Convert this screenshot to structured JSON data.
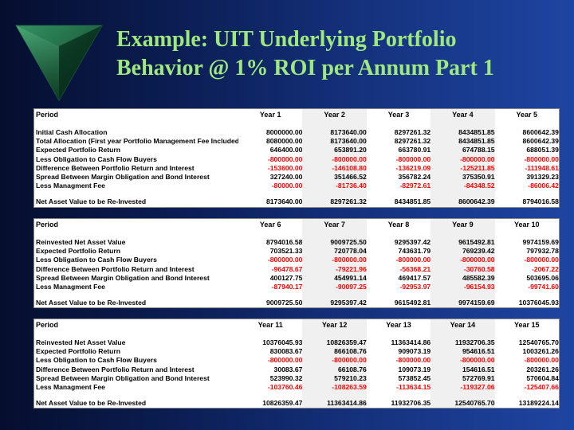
{
  "slide": {
    "title_line1": "Example: UIT Underlying Portfolio",
    "title_line2": "Behavior @ 1% ROI per Annum Part 1"
  },
  "tables": [
    {
      "header_label": "Period",
      "years": [
        "Year 1",
        "Year 2",
        "Year 3",
        "Year 4",
        "Year 5"
      ],
      "rows": [
        {
          "label": "Initial Cash Allocation",
          "values": [
            "8000000.00",
            "8173640.00",
            "8297261.32",
            "8434851.85",
            "8600642.39"
          ],
          "neg": false
        },
        {
          "label": "Total Allocation (First year Portfolio Management Fee Included)",
          "values": [
            "8080000.00",
            "8173640.00",
            "8297261.32",
            "8434851.85",
            "8600642.39"
          ],
          "neg": false
        },
        {
          "label": "Expected Portfolio Return",
          "values": [
            "646400.00",
            "653891.20",
            "663780.91",
            "674788.15",
            "688051.39"
          ],
          "neg": false
        },
        {
          "label": "Less Obligation to Cash Flow Buyers",
          "values": [
            "-800000.00",
            "-800000.00",
            "-800000.00",
            "-800000.00",
            "-800000.00"
          ],
          "neg": true
        },
        {
          "label": "Difference Between Portfolio Return and Interest",
          "values": [
            "-153600.00",
            "-146108.80",
            "-136219.09",
            "-125211.85",
            "-111948.61"
          ],
          "neg": true
        },
        {
          "label": "Spread Between Margin Obligation and Bond Interest",
          "values": [
            "327240.00",
            "351466.52",
            "356782.24",
            "375350.91",
            "391329.23"
          ],
          "neg": false
        },
        {
          "label": "Less Managment Fee",
          "values": [
            "-80000.00",
            "-81736.40",
            "-82972.61",
            "-84348.52",
            "-86006.42"
          ],
          "neg": true
        }
      ],
      "total_label": "Net Asset Value to be Re-Invested",
      "totals": [
        "8173640.00",
        "8297261.32",
        "8434851.85",
        "8600642.39",
        "8794016.58"
      ]
    },
    {
      "header_label": "Period",
      "years": [
        "Year 6",
        "Year 7",
        "Year 8",
        "Year 9",
        "Year 10"
      ],
      "rows": [
        {
          "label": "Reinvested Net Asset Value",
          "values": [
            "8794016.58",
            "9009725.50",
            "9295397.42",
            "9615492.81",
            "9974159.69"
          ],
          "neg": false
        },
        {
          "label": "Expected Portfolio Return",
          "values": [
            "703521.33",
            "720778.04",
            "743631.79",
            "769239.42",
            "797932.78"
          ],
          "neg": false
        },
        {
          "label": "Less Obligation to Cash Flow Buyers",
          "values": [
            "-800000.00",
            "-800000.00",
            "-800000.00",
            "-800000.00",
            "-800000.00"
          ],
          "neg": true
        },
        {
          "label": "Difference Between Portfolio Return and Interest",
          "values": [
            "-96478.67",
            "-79221.96",
            "-56368.21",
            "-30760.58",
            "-2067.22"
          ],
          "neg": true
        },
        {
          "label": "Spread Between Margin Obligation and Bond Interest",
          "values": [
            "400127.75",
            "454991.14",
            "469417.57",
            "485582.39",
            "503695.06"
          ],
          "neg": false
        },
        {
          "label": "Less Managment Fee",
          "values": [
            "-87940.17",
            "-90097.25",
            "-92953.97",
            "-96154.93",
            "-99741.60"
          ],
          "neg": true
        }
      ],
      "total_label": "Net Asset Value to be Re-Invested",
      "totals": [
        "9009725.50",
        "9295397.42",
        "9615492.81",
        "9974159.69",
        "10376045.93"
      ]
    },
    {
      "header_label": "Period",
      "years": [
        "Year 11",
        "Year 12",
        "Year 13",
        "Year 14",
        "Year 15"
      ],
      "rows": [
        {
          "label": "Reinvested Net Asset Value",
          "values": [
            "10376045.93",
            "10826359.47",
            "11363414.86",
            "11932706.35",
            "12540765.70"
          ],
          "neg": false
        },
        {
          "label": "Expected Portfolio Return",
          "values": [
            "830083.67",
            "866108.76",
            "909073.19",
            "954616.51",
            "1003261.26"
          ],
          "neg": false
        },
        {
          "label": "Less Obligation to Cash Flow Buyers",
          "values": [
            "-800000.00",
            "-800000.00",
            "-800000.00",
            "-800000.00",
            "-800000.00"
          ],
          "neg": true
        },
        {
          "label": "Difference Between Portfolio Return and Interest",
          "values": [
            "30083.67",
            "66108.76",
            "109073.19",
            "154616.51",
            "203261.26"
          ],
          "neg": false
        },
        {
          "label": "Spread Between Margin Obligation and Bond Interest",
          "values": [
            "523990.32",
            "579210.23",
            "573852.45",
            "572769.91",
            "570604.84"
          ],
          "neg": false
        },
        {
          "label": "Less Managment Fee",
          "values": [
            "-103760.46",
            "-108263.59",
            "-113634.15",
            "-119327.06",
            "-125407.66"
          ],
          "neg": true
        }
      ],
      "total_label": "Net Asset Value to be Re-Invested",
      "totals": [
        "10826359.47",
        "11363414.86",
        "11932706.35",
        "12540765.70",
        "13189224.14"
      ]
    }
  ]
}
